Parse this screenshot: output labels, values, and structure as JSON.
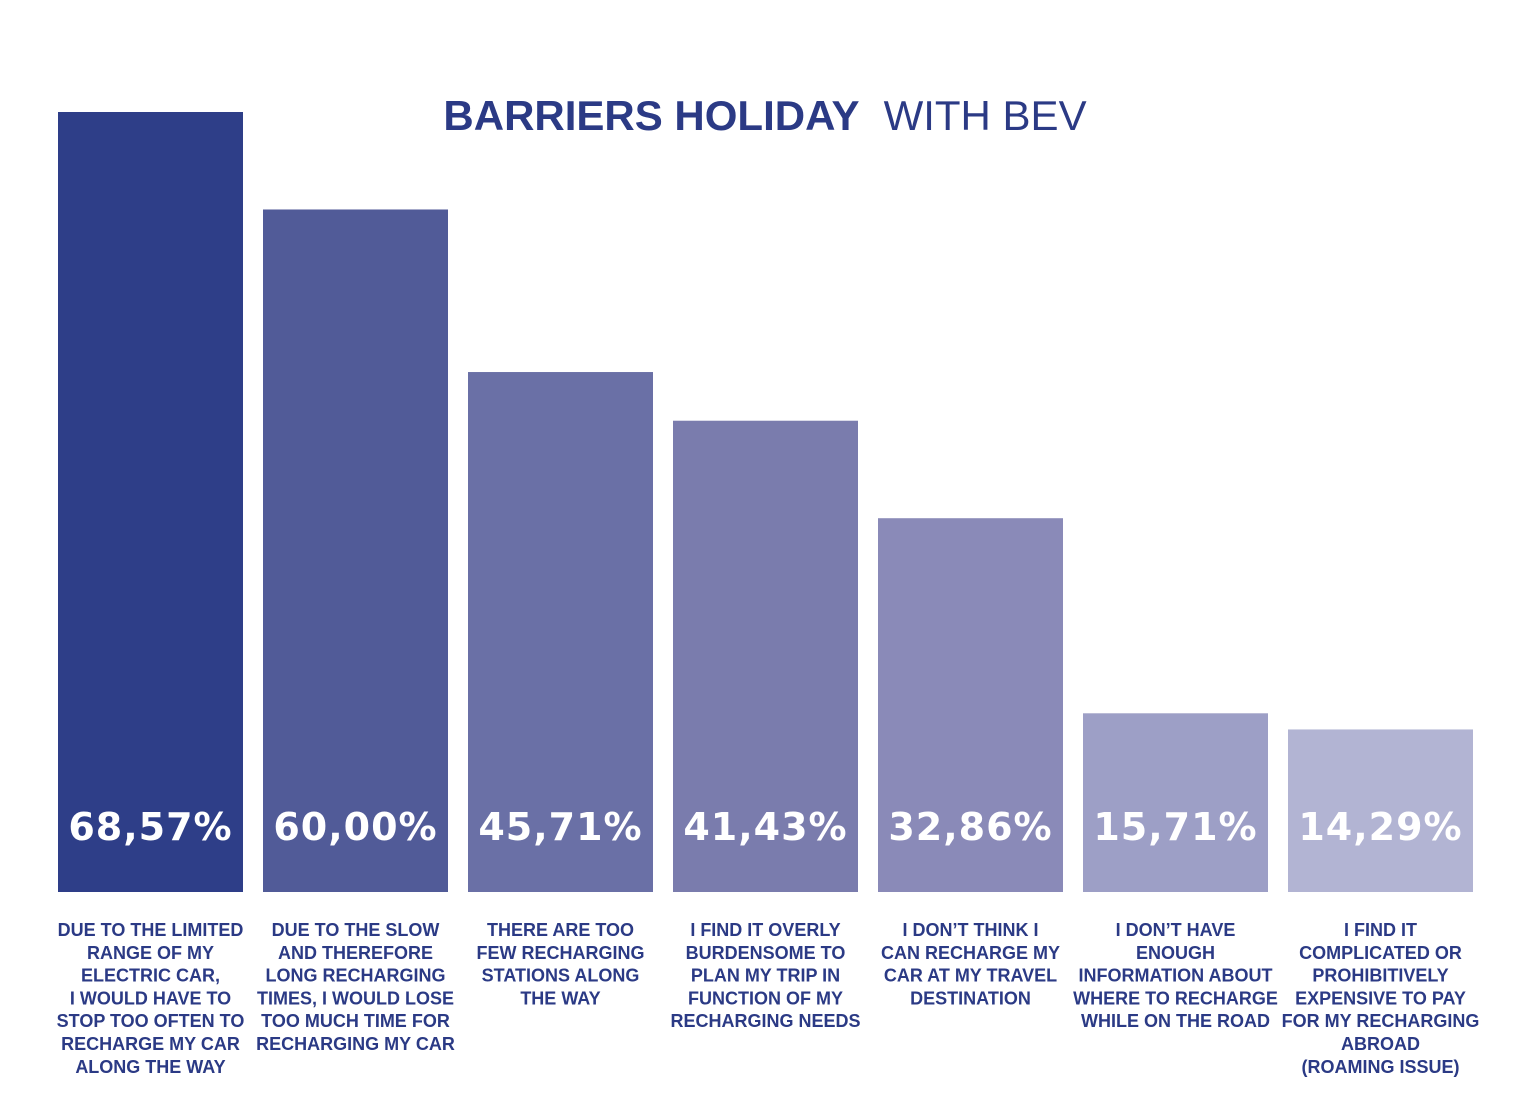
{
  "chart_data": {
    "type": "bar",
    "title_bold": "BARRIERS HOLIDAY",
    "title_light": "WITH BEV",
    "title": "BARRIERS HOLIDAY WITH BEV",
    "xlabel": "",
    "ylabel": "",
    "ylim": [
      0,
      70
    ],
    "grid": false,
    "legend": "none",
    "values": [
      68.57,
      60.0,
      45.71,
      41.43,
      32.86,
      15.71,
      14.29
    ],
    "value_labels": [
      "68,57%",
      "60,00%",
      "45,71%",
      "41,43%",
      "32,86%",
      "15,71%",
      "14,29%"
    ],
    "categories": [
      [
        "DUE TO THE LIMITED",
        "RANGE OF MY",
        "ELECTRIC CAR,",
        "I WOULD HAVE TO",
        "STOP TOO OFTEN TO",
        "RECHARGE MY CAR",
        "ALONG THE WAY"
      ],
      [
        "DUE TO THE SLOW",
        "AND THEREFORE",
        "LONG RECHARGING",
        "TIMES, I WOULD LOSE",
        "TOO MUCH TIME FOR",
        "RECHARGING MY CAR"
      ],
      [
        "THERE ARE TOO",
        "FEW RECHARGING",
        "STATIONS ALONG",
        "THE WAY"
      ],
      [
        "I FIND IT OVERLY",
        "BURDENSOME TO",
        "PLAN MY TRIP IN",
        "FUNCTION OF MY",
        "RECHARGING NEEDS"
      ],
      [
        "I DON’T THINK I",
        "CAN RECHARGE MY",
        "CAR AT MY TRAVEL",
        "DESTINATION"
      ],
      [
        "I DON’T HAVE",
        "ENOUGH",
        "INFORMATION ABOUT",
        "WHERE TO RECHARGE",
        "WHILE ON THE ROAD"
      ],
      [
        "I FIND IT",
        "COMPLICATED OR",
        "PROHIBITIVELY",
        "EXPENSIVE TO PAY",
        "FOR MY RECHARGING",
        "ABROAD",
        "(ROAMING ISSUE)"
      ]
    ],
    "colors": [
      "#2e3e88",
      "#515b98",
      "#6a70a6",
      "#7a7cad",
      "#8a8ab8",
      "#9d9fc6",
      "#b2b4d3"
    ],
    "title_color": "#2b3a85",
    "label_color": "#2b3a85"
  }
}
